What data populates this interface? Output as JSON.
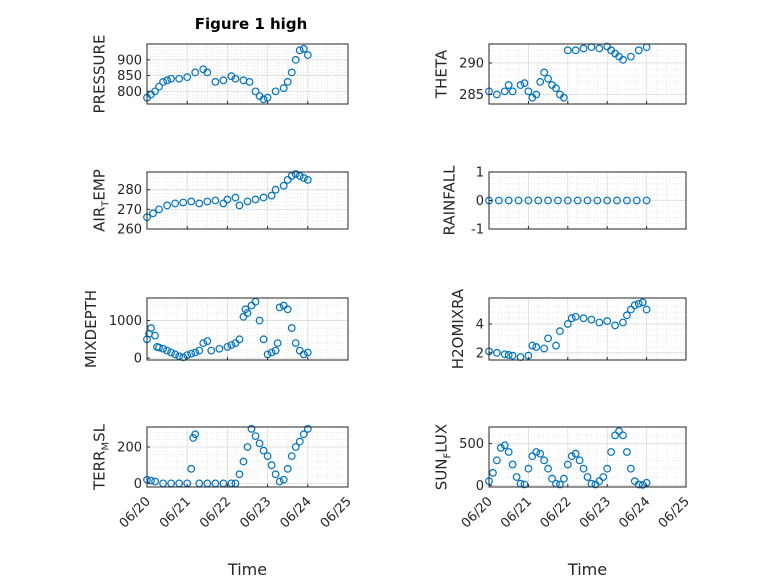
{
  "figure": {
    "title": "Figure 1 high"
  },
  "chart_data": [
    {
      "id": "pressure",
      "type": "scatter",
      "ylabel": "PRESSURE",
      "xlabel": "",
      "xlim": [
        0,
        5
      ],
      "ylim": [
        760,
        950
      ],
      "yticks": [
        800,
        850,
        900
      ],
      "show_xticks": false,
      "x": [
        0,
        0.1,
        0.2,
        0.3,
        0.4,
        0.5,
        0.6,
        0.8,
        1.0,
        1.2,
        1.4,
        1.5,
        1.7,
        1.9,
        2.1,
        2.2,
        2.4,
        2.55,
        2.7,
        2.8,
        2.9,
        3.0,
        3.2,
        3.4,
        3.5,
        3.6,
        3.7,
        3.8,
        3.9,
        4.0
      ],
      "y": [
        780,
        790,
        800,
        815,
        830,
        835,
        840,
        840,
        845,
        860,
        870,
        860,
        830,
        835,
        848,
        840,
        835,
        830,
        800,
        785,
        775,
        780,
        800,
        810,
        830,
        860,
        900,
        930,
        935,
        915
      ]
    },
    {
      "id": "theta",
      "type": "scatter",
      "ylabel": "THETA",
      "xlabel": "",
      "xlim": [
        0,
        5
      ],
      "ylim": [
        283.5,
        293
      ],
      "yticks": [
        285,
        290
      ],
      "show_xticks": false,
      "x": [
        0,
        0.2,
        0.4,
        0.5,
        0.6,
        0.8,
        0.9,
        1.0,
        1.1,
        1.2,
        1.3,
        1.4,
        1.5,
        1.6,
        1.7,
        1.8,
        1.9,
        2.0,
        2.2,
        2.4,
        2.6,
        2.8,
        3.0,
        3.1,
        3.2,
        3.3,
        3.4,
        3.6,
        3.8,
        4.0
      ],
      "y": [
        285.5,
        285,
        285.5,
        286.5,
        285.5,
        286.5,
        286.8,
        285.5,
        284.5,
        285,
        287,
        288.5,
        287.5,
        286.5,
        286,
        285,
        284.5,
        292,
        292,
        292.3,
        292.5,
        292.3,
        292.6,
        292,
        291.5,
        291,
        290.5,
        291,
        292,
        292.5
      ]
    },
    {
      "id": "air_temp",
      "type": "scatter",
      "ylabel": "AIR",
      "ylabel_sub": "T",
      "ylabel_rest": "EMP",
      "xlabel": "",
      "xlim": [
        0,
        5
      ],
      "ylim": [
        260,
        289
      ],
      "yticks": [
        260,
        270,
        280
      ],
      "show_xticks": false,
      "x": [
        0,
        0.15,
        0.3,
        0.5,
        0.7,
        0.9,
        1.1,
        1.3,
        1.5,
        1.7,
        1.9,
        2.0,
        2.2,
        2.3,
        2.5,
        2.7,
        2.9,
        3.1,
        3.2,
        3.4,
        3.5,
        3.6,
        3.7,
        3.8,
        3.9,
        4.0
      ],
      "y": [
        266,
        268,
        270,
        272,
        273,
        273.5,
        274,
        273,
        274,
        274.5,
        273,
        275,
        276,
        272,
        274,
        275,
        276,
        277,
        280,
        282,
        285,
        287,
        288,
        287,
        286,
        285
      ]
    },
    {
      "id": "rainfall",
      "type": "scatter",
      "ylabel": "RAINFALL",
      "xlabel": "",
      "xlim": [
        0,
        5
      ],
      "ylim": [
        -1,
        1
      ],
      "yticks": [
        -1,
        0,
        1
      ],
      "show_xticks": false,
      "x": [
        0,
        0.25,
        0.5,
        0.75,
        1.0,
        1.25,
        1.5,
        1.75,
        2.0,
        2.25,
        2.5,
        2.75,
        3.0,
        3.25,
        3.5,
        3.75,
        4.0
      ],
      "y": [
        0,
        0,
        0,
        0,
        0,
        0,
        0,
        0,
        0,
        0,
        0,
        0,
        0,
        0,
        0,
        0,
        0
      ]
    },
    {
      "id": "mixdepth",
      "type": "scatter",
      "ylabel": "MIXDEPTH",
      "xlabel": "",
      "xlim": [
        0,
        5
      ],
      "ylim": [
        -50,
        1600
      ],
      "yticks": [
        0,
        1000
      ],
      "show_xticks": false,
      "x": [
        0,
        0.05,
        0.1,
        0.2,
        0.25,
        0.3,
        0.4,
        0.5,
        0.6,
        0.7,
        0.8,
        0.9,
        1.0,
        1.1,
        1.2,
        1.3,
        1.4,
        1.5,
        1.6,
        1.8,
        2.0,
        2.1,
        2.2,
        2.3,
        2.4,
        2.45,
        2.5,
        2.6,
        2.7,
        2.8,
        2.9,
        3.0,
        3.1,
        3.2,
        3.25,
        3.3,
        3.4,
        3.5,
        3.6,
        3.7,
        3.8,
        3.9,
        4.0
      ],
      "y": [
        500,
        650,
        800,
        600,
        300,
        280,
        250,
        200,
        150,
        100,
        50,
        20,
        80,
        120,
        150,
        200,
        400,
        450,
        200,
        250,
        300,
        350,
        400,
        500,
        1100,
        1300,
        1200,
        1400,
        1500,
        1000,
        500,
        100,
        150,
        200,
        400,
        1350,
        1400,
        1300,
        800,
        400,
        200,
        100,
        150
      ]
    },
    {
      "id": "h2omixra",
      "type": "scatter",
      "ylabel": "H2OMIXRA",
      "xlabel": "",
      "xlim": [
        0,
        5
      ],
      "ylim": [
        1.5,
        5.8
      ],
      "yticks": [
        2,
        4
      ],
      "show_xticks": false,
      "x": [
        0,
        0.2,
        0.4,
        0.5,
        0.6,
        0.8,
        1.0,
        1.1,
        1.2,
        1.4,
        1.5,
        1.7,
        1.8,
        2.0,
        2.1,
        2.2,
        2.4,
        2.6,
        2.8,
        3.0,
        3.2,
        3.4,
        3.5,
        3.6,
        3.7,
        3.8,
        3.9,
        4.0
      ],
      "y": [
        2.1,
        2.0,
        1.9,
        1.85,
        1.8,
        1.7,
        1.8,
        2.5,
        2.4,
        2.3,
        3.0,
        2.5,
        3.5,
        4.0,
        4.4,
        4.5,
        4.4,
        4.3,
        4.1,
        4.2,
        3.9,
        4.1,
        4.6,
        5.0,
        5.3,
        5.4,
        5.5,
        5.0
      ]
    },
    {
      "id": "terr_msl",
      "type": "scatter",
      "ylabel": "TERR",
      "ylabel_sub": "M",
      "ylabel_rest": "SL",
      "xlabel": "Time",
      "xlim": [
        0,
        5
      ],
      "ylim": [
        -20,
        310
      ],
      "yticks": [
        0,
        200
      ],
      "show_xticks": true,
      "xticks": [
        0,
        1,
        2,
        3,
        4,
        5
      ],
      "xticklabels": [
        "06/20",
        "06/21",
        "06/22",
        "06/23",
        "06/24",
        "06/25"
      ],
      "x": [
        0,
        0.1,
        0.2,
        0.4,
        0.6,
        0.8,
        1.0,
        1.1,
        1.15,
        1.2,
        1.3,
        1.5,
        1.7,
        1.9,
        2.1,
        2.2,
        2.3,
        2.4,
        2.5,
        2.6,
        2.7,
        2.8,
        2.9,
        3.0,
        3.1,
        3.2,
        3.3,
        3.4,
        3.5,
        3.6,
        3.7,
        3.8,
        3.9,
        4.0
      ],
      "y": [
        20,
        15,
        10,
        0,
        0,
        0,
        0,
        80,
        250,
        270,
        0,
        0,
        0,
        0,
        0,
        0,
        50,
        120,
        200,
        300,
        260,
        220,
        180,
        150,
        100,
        50,
        10,
        20,
        80,
        150,
        200,
        230,
        270,
        300
      ]
    },
    {
      "id": "sun_flux",
      "type": "scatter",
      "ylabel": "SUN",
      "ylabel_sub": "F",
      "ylabel_rest": "LUX",
      "xlabel": "Time",
      "xlim": [
        0,
        5
      ],
      "ylim": [
        -20,
        700
      ],
      "yticks": [
        0,
        500
      ],
      "show_xticks": true,
      "xticks": [
        0,
        1,
        2,
        3,
        4,
        5
      ],
      "xticklabels": [
        "06/20",
        "06/21",
        "06/22",
        "06/23",
        "06/24",
        "06/25"
      ],
      "x": [
        0,
        0.1,
        0.2,
        0.3,
        0.4,
        0.5,
        0.6,
        0.7,
        0.8,
        0.9,
        1.0,
        1.1,
        1.2,
        1.3,
        1.4,
        1.5,
        1.6,
        1.7,
        1.8,
        1.9,
        2.0,
        2.1,
        2.2,
        2.3,
        2.4,
        2.5,
        2.6,
        2.7,
        2.8,
        2.9,
        3.0,
        3.1,
        3.2,
        3.3,
        3.4,
        3.5,
        3.6,
        3.7,
        3.8,
        3.9,
        4.0
      ],
      "y": [
        50,
        150,
        300,
        450,
        480,
        400,
        250,
        100,
        20,
        10,
        200,
        350,
        400,
        380,
        300,
        200,
        80,
        20,
        10,
        80,
        250,
        350,
        380,
        300,
        200,
        100,
        20,
        10,
        50,
        100,
        200,
        400,
        600,
        650,
        600,
        400,
        200,
        50,
        10,
        5,
        30
      ]
    }
  ]
}
